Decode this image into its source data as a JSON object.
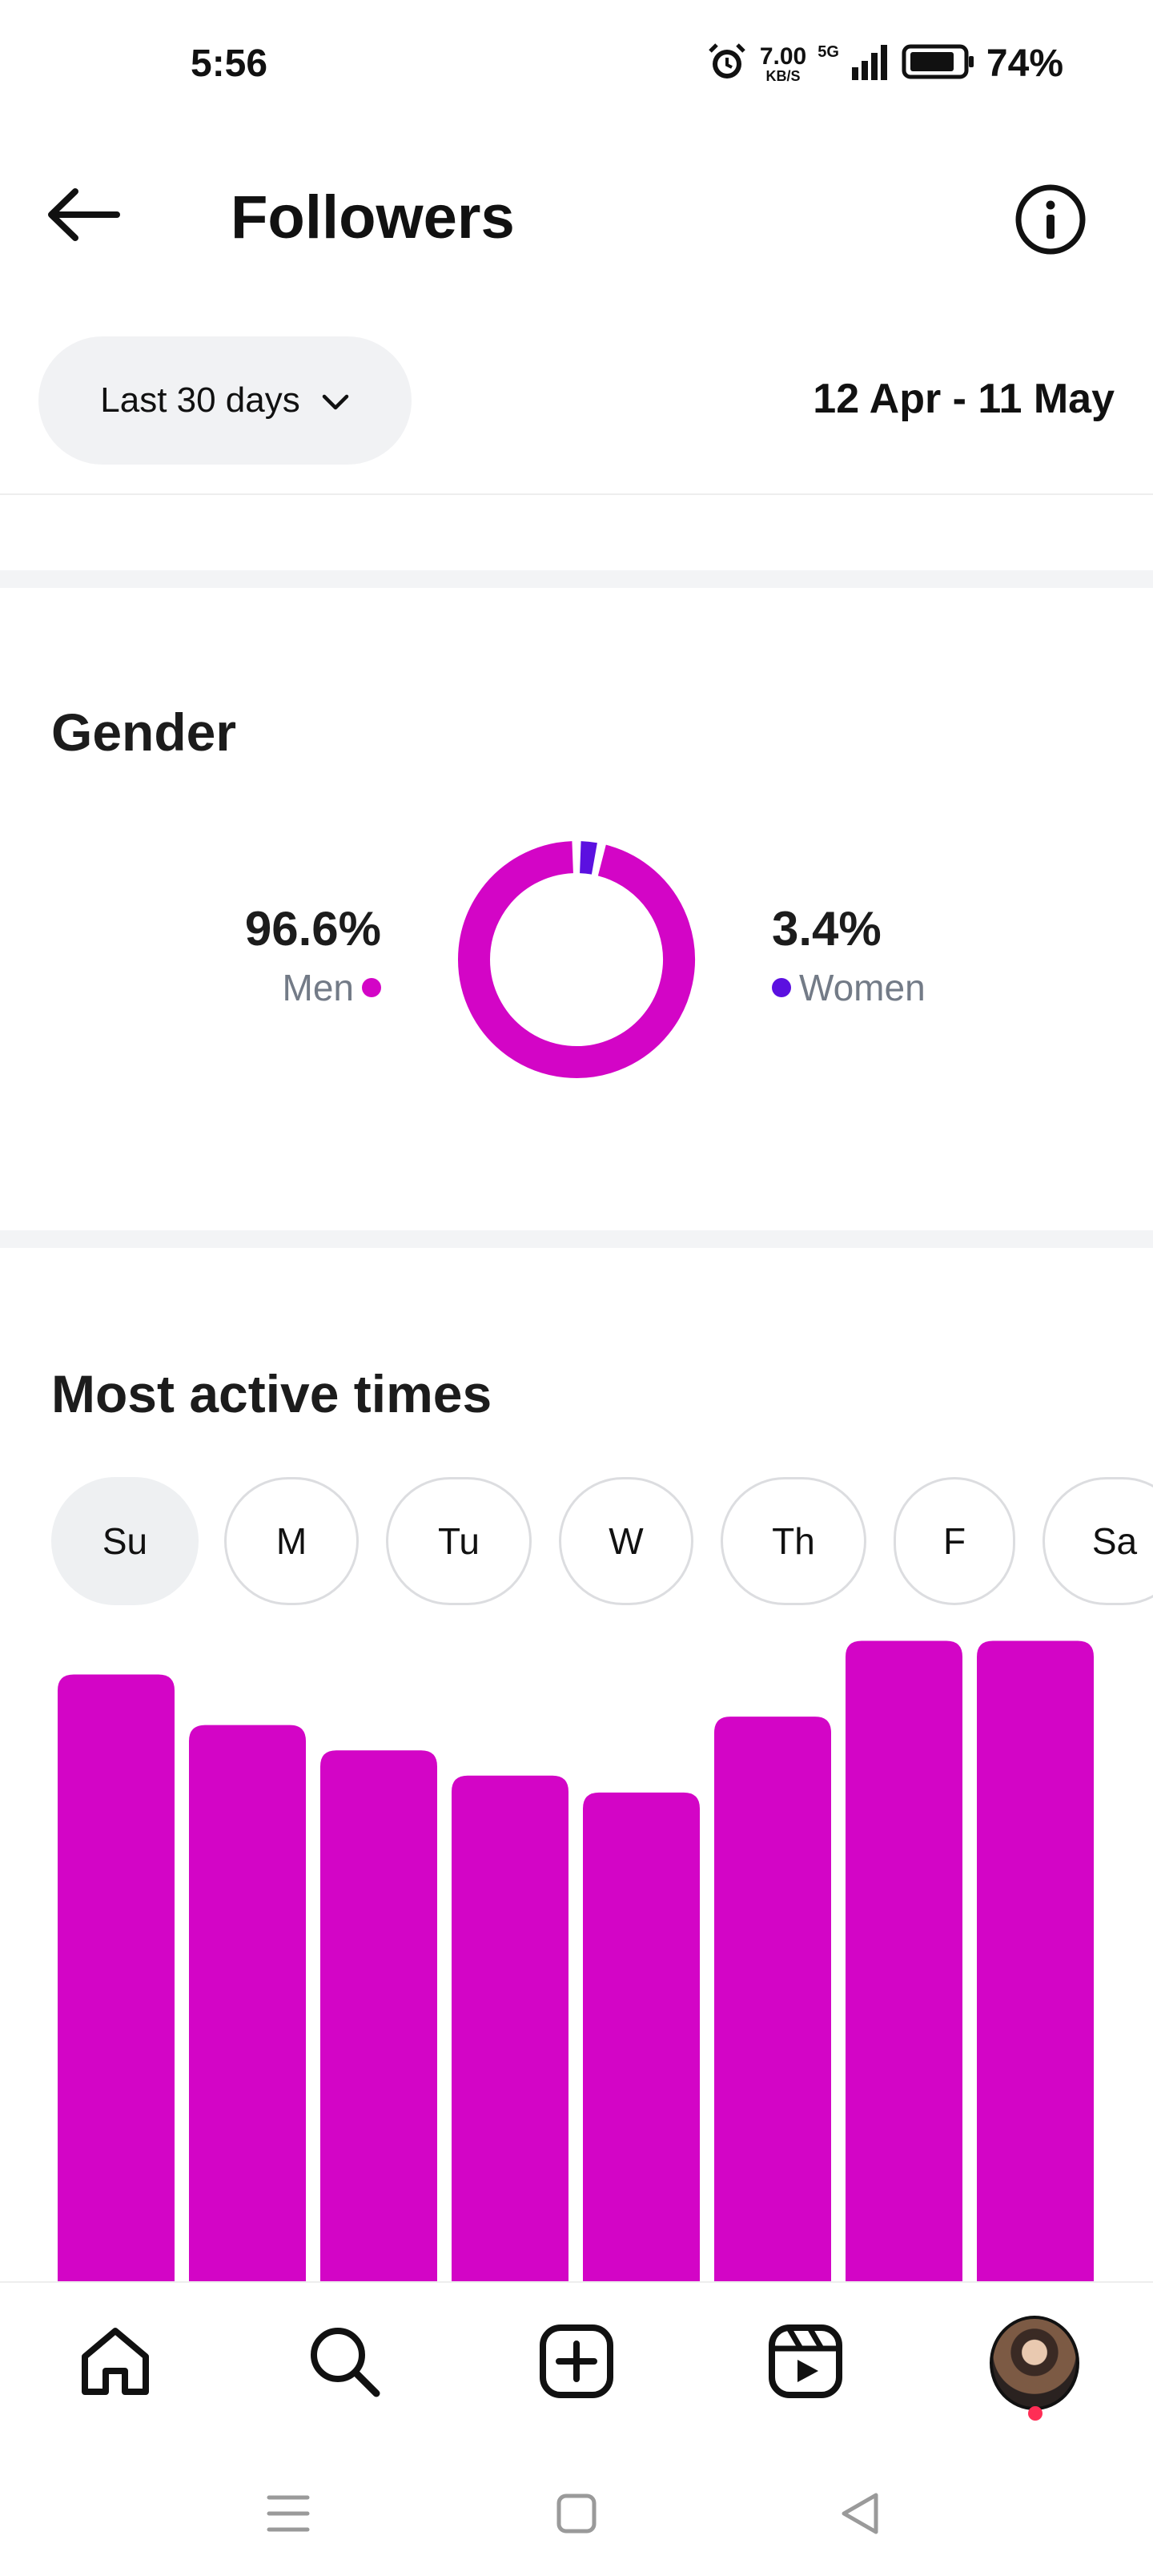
{
  "status_bar": {
    "time": "5:56",
    "net_speed_value": "7.00",
    "net_speed_unit": "KB/S",
    "network": "5G",
    "battery_pct": "74%"
  },
  "header": {
    "title": "Followers",
    "back_icon": "arrow-left-icon",
    "info_icon": "info-icon"
  },
  "filter": {
    "range_label": "Last 30 days",
    "date_range": "12 Apr - 11 May"
  },
  "gender": {
    "title": "Gender",
    "men_pct": "96.6%",
    "men_label": "Men",
    "women_pct": "3.4%",
    "women_label": "Women",
    "men_color": "#d305c6",
    "women_color": "#5b10e0"
  },
  "most_active": {
    "title": "Most active times",
    "days": [
      "Su",
      "M",
      "Tu",
      "W",
      "Th",
      "F",
      "Sa"
    ],
    "selected_day": "Su"
  },
  "chart_data": {
    "type": "bar",
    "categories": [
      "",
      "",
      "",
      "",
      "",
      "",
      "",
      ""
    ],
    "values": [
      72,
      66,
      63,
      60,
      58,
      67,
      76,
      76
    ],
    "ylim": [
      0,
      100
    ],
    "grid": false,
    "color": "#d305c6"
  },
  "bottom_nav": {
    "items": [
      "home-icon",
      "search-icon",
      "create-icon",
      "reels-icon",
      "profile-avatar"
    ]
  },
  "colors": {
    "accent": "#d305c6",
    "secondary": "#5b10e0",
    "pill_bg": "#f1f2f4"
  }
}
